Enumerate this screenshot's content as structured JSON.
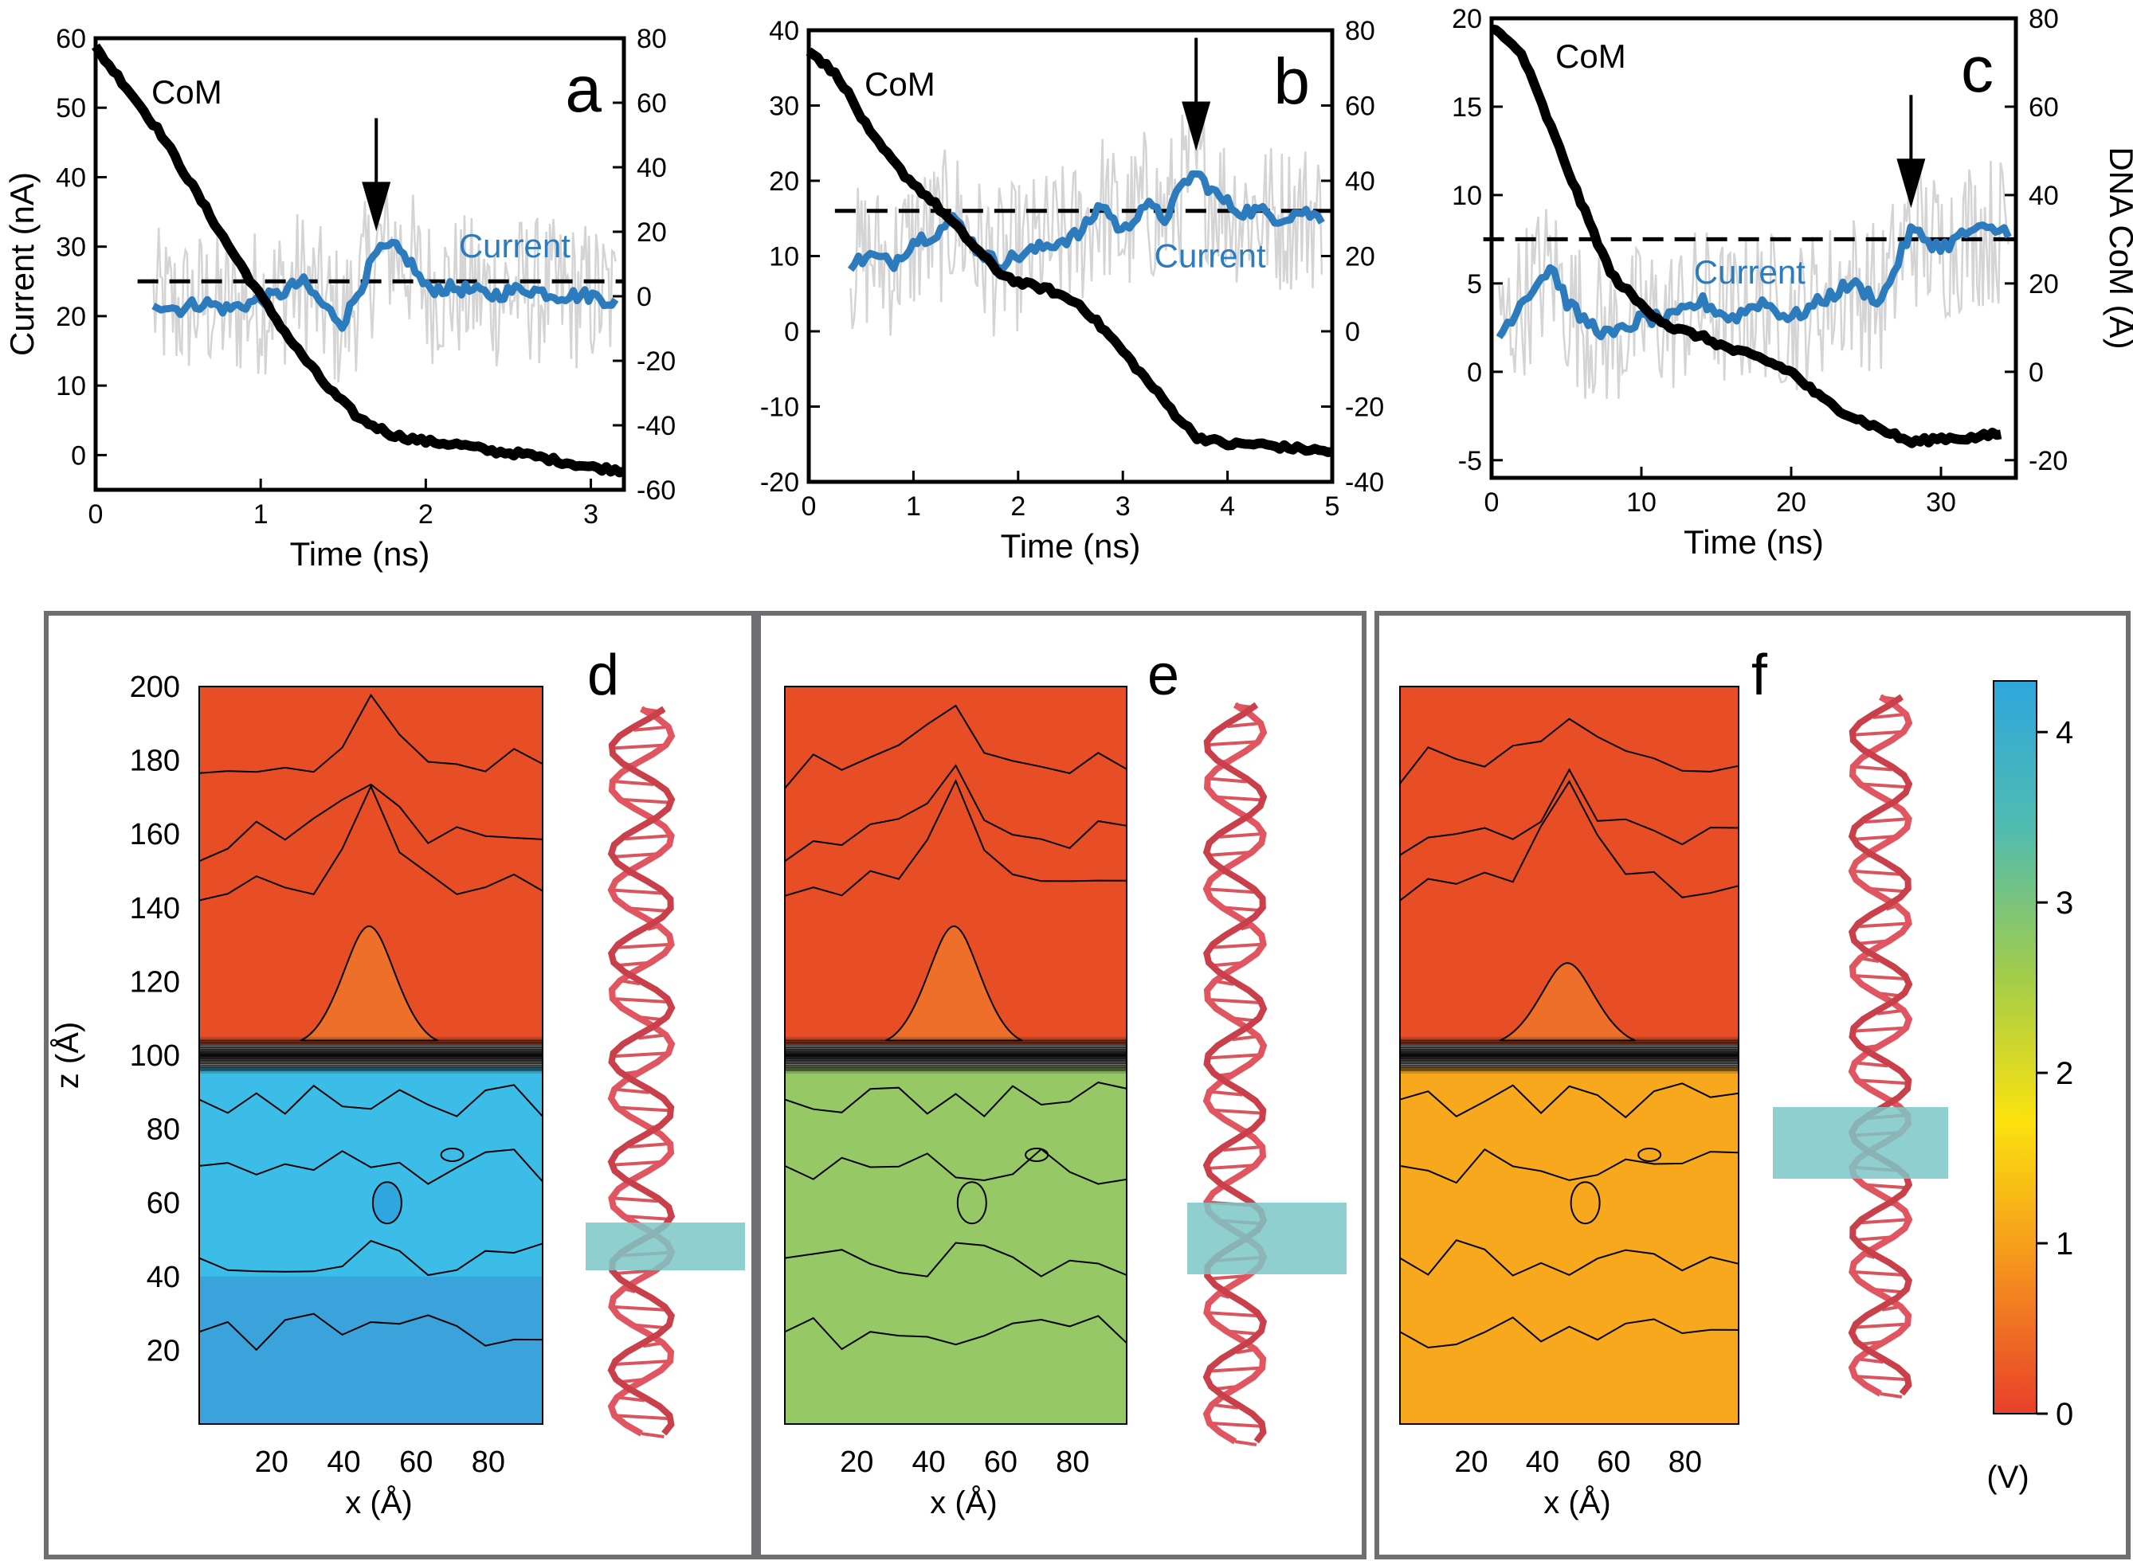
{
  "chart_data": [
    {
      "panel": "a",
      "type": "line",
      "title": "",
      "xlabel": "Time (ns)",
      "ylabel": "Current (nA)",
      "y2label": "",
      "xlim": [
        0,
        3.2
      ],
      "ylim": [
        -5,
        60
      ],
      "y2lim": [
        -60,
        80
      ],
      "xticks": [
        "0",
        "1",
        "2",
        "3"
      ],
      "yticks": [
        "0",
        "10",
        "20",
        "30",
        "40",
        "50",
        "60"
      ],
      "y2ticks": [
        "-60",
        "-40",
        "-20",
        "0",
        "20",
        "40",
        "60",
        "80"
      ],
      "panel_label": "a",
      "annotations": [
        "CoM",
        "Current"
      ],
      "arrow_x": 1.7,
      "dashed_level": 25,
      "series": [
        {
          "name": "CoM",
          "axis": "right",
          "color": "#000000",
          "x": [
            0,
            0.2,
            0.4,
            0.6,
            0.8,
            1.0,
            1.2,
            1.4,
            1.6,
            1.8,
            2.0,
            2.2,
            2.4,
            2.6,
            2.8,
            3.0,
            3.2
          ],
          "y": [
            77,
            64,
            50,
            33,
            16,
            0,
            -15,
            -28,
            -38,
            -43,
            -45,
            -46,
            -48,
            -49,
            -51,
            -53,
            -54
          ]
        },
        {
          "name": "Current",
          "axis": "left",
          "color": "#2b7bbd",
          "x": [
            0.35,
            0.5,
            0.65,
            0.8,
            0.95,
            1.1,
            1.25,
            1.4,
            1.5,
            1.6,
            1.7,
            1.8,
            1.9,
            2.0,
            2.2,
            2.4,
            2.6,
            2.8,
            3.0,
            3.15
          ],
          "y": [
            22,
            21,
            22,
            21,
            22,
            23,
            25,
            21,
            19,
            24,
            29,
            30,
            28,
            24,
            24,
            23,
            24,
            23,
            23,
            22
          ]
        }
      ]
    },
    {
      "panel": "b",
      "type": "line",
      "title": "",
      "xlabel": "Time (ns)",
      "ylabel": "",
      "y2label": "",
      "xlim": [
        0,
        5
      ],
      "ylim": [
        -20,
        40
      ],
      "y2lim": [
        -40,
        80
      ],
      "xticks": [
        "0",
        "1",
        "2",
        "3",
        "4",
        "5"
      ],
      "yticks": [
        "-20",
        "-10",
        "0",
        "10",
        "20",
        "30",
        "40"
      ],
      "y2ticks": [
        "-40",
        "-20",
        "0",
        "20",
        "40",
        "60",
        "80"
      ],
      "panel_label": "b",
      "annotations": [
        "CoM",
        "Current"
      ],
      "arrow_x": 3.7,
      "dashed_level": 16,
      "series": [
        {
          "name": "CoM",
          "axis": "right",
          "color": "#000000",
          "x": [
            0,
            0.3,
            0.6,
            0.9,
            1.2,
            1.5,
            1.8,
            2.0,
            2.3,
            2.6,
            2.9,
            3.2,
            3.5,
            3.7,
            4.0,
            4.3,
            4.6,
            5.0
          ],
          "y": [
            75,
            67,
            52,
            42,
            34,
            25,
            16,
            13,
            11,
            7,
            -2,
            -12,
            -22,
            -28,
            -30,
            -30,
            -31,
            -32
          ]
        },
        {
          "name": "Current",
          "axis": "left",
          "color": "#2b7bbd",
          "x": [
            0.4,
            0.6,
            0.8,
            1.0,
            1.2,
            1.4,
            1.6,
            1.8,
            2.0,
            2.2,
            2.4,
            2.6,
            2.8,
            3.0,
            3.2,
            3.4,
            3.6,
            3.7,
            3.9,
            4.1,
            4.3,
            4.5,
            4.7,
            4.9
          ],
          "y": [
            9,
            10,
            9,
            12,
            13,
            15,
            11,
            9,
            10,
            11,
            12,
            13,
            17,
            13,
            17,
            15,
            20,
            21,
            18,
            16,
            16,
            15,
            16,
            15
          ]
        }
      ]
    },
    {
      "panel": "c",
      "type": "line",
      "title": "",
      "xlabel": "Time (ns)",
      "ylabel": "",
      "y2label": "DNA CoM (Å)",
      "xlim": [
        0,
        35
      ],
      "ylim": [
        -6,
        20
      ],
      "y2lim": [
        -24,
        80
      ],
      "xticks": [
        "0",
        "10",
        "20",
        "30"
      ],
      "yticks": [
        "-5",
        "0",
        "5",
        "10",
        "15",
        "20"
      ],
      "y2ticks": [
        "-20",
        "0",
        "20",
        "40",
        "60",
        "80"
      ],
      "panel_label": "c",
      "annotations": [
        "CoM",
        "Current"
      ],
      "arrow_x": 28,
      "dashed_level": 7.5,
      "series": [
        {
          "name": "CoM",
          "axis": "right",
          "color": "#000000",
          "x": [
            0,
            2,
            4,
            6,
            8,
            10,
            12,
            14,
            16,
            18,
            20,
            22,
            24,
            26,
            28,
            30,
            32,
            34
          ],
          "y": [
            78,
            72,
            55,
            38,
            22,
            15,
            10,
            8,
            5,
            3,
            0,
            -6,
            -10,
            -13,
            -16,
            -15,
            -15,
            -14
          ]
        },
        {
          "name": "Current",
          "axis": "left",
          "color": "#2b7bbd",
          "x": [
            0.5,
            2,
            3,
            4,
            5,
            6,
            8,
            10,
            12,
            14,
            16,
            18,
            20,
            22,
            24,
            26,
            27,
            28,
            30,
            32,
            34.5
          ],
          "y": [
            2,
            4,
            5,
            6,
            4,
            3,
            2,
            3,
            3,
            4,
            3,
            4,
            3,
            4,
            5,
            4,
            6,
            8,
            7,
            8,
            8
          ]
        }
      ]
    },
    {
      "panel": "d",
      "type": "heatmap",
      "title": "",
      "xlabel": "x (Å)",
      "ylabel": "z (Å)",
      "xlim": [
        0,
        95
      ],
      "ylim": [
        0,
        200
      ],
      "xticks": [
        "20",
        "40",
        "60",
        "80"
      ],
      "yticks": [
        "20",
        "40",
        "60",
        "80",
        "100",
        "120",
        "140",
        "160",
        "180",
        "200"
      ],
      "panel_label": "d",
      "colors": {
        "top": "#e84e25",
        "mid": "#ee6f2a",
        "bottom": "#3bbde8",
        "lower": "#3aa3dc"
      }
    },
    {
      "panel": "e",
      "type": "heatmap",
      "title": "",
      "xlabel": "x (Å)",
      "ylabel": "",
      "xlim": [
        0,
        95
      ],
      "ylim": [
        0,
        200
      ],
      "xticks": [
        "20",
        "40",
        "60",
        "80"
      ],
      "panel_label": "e",
      "colors": {
        "top": "#e84e25",
        "mid": "#ee6f2a",
        "bottom": "#96c866",
        "lower": "#96c866"
      }
    },
    {
      "panel": "f",
      "type": "heatmap",
      "title": "",
      "xlabel": "x (Å)",
      "ylabel": "",
      "xlim": [
        0,
        95
      ],
      "ylim": [
        0,
        200
      ],
      "xticks": [
        "20",
        "40",
        "60",
        "80"
      ],
      "panel_label": "f",
      "colors": {
        "top": "#e84e25",
        "mid": "#ee6f2a",
        "bottom": "#f7a81d",
        "lower": "#f7a81d"
      }
    }
  ],
  "colorbar": {
    "ticks": [
      "0",
      "1",
      "2",
      "3",
      "4"
    ],
    "range": [
      0,
      4.3
    ],
    "unit": "(V)",
    "stops": [
      "#e8402a",
      "#f5921e",
      "#fbe20e",
      "#a2cc4b",
      "#4fbcb0",
      "#2fa6dd"
    ]
  }
}
